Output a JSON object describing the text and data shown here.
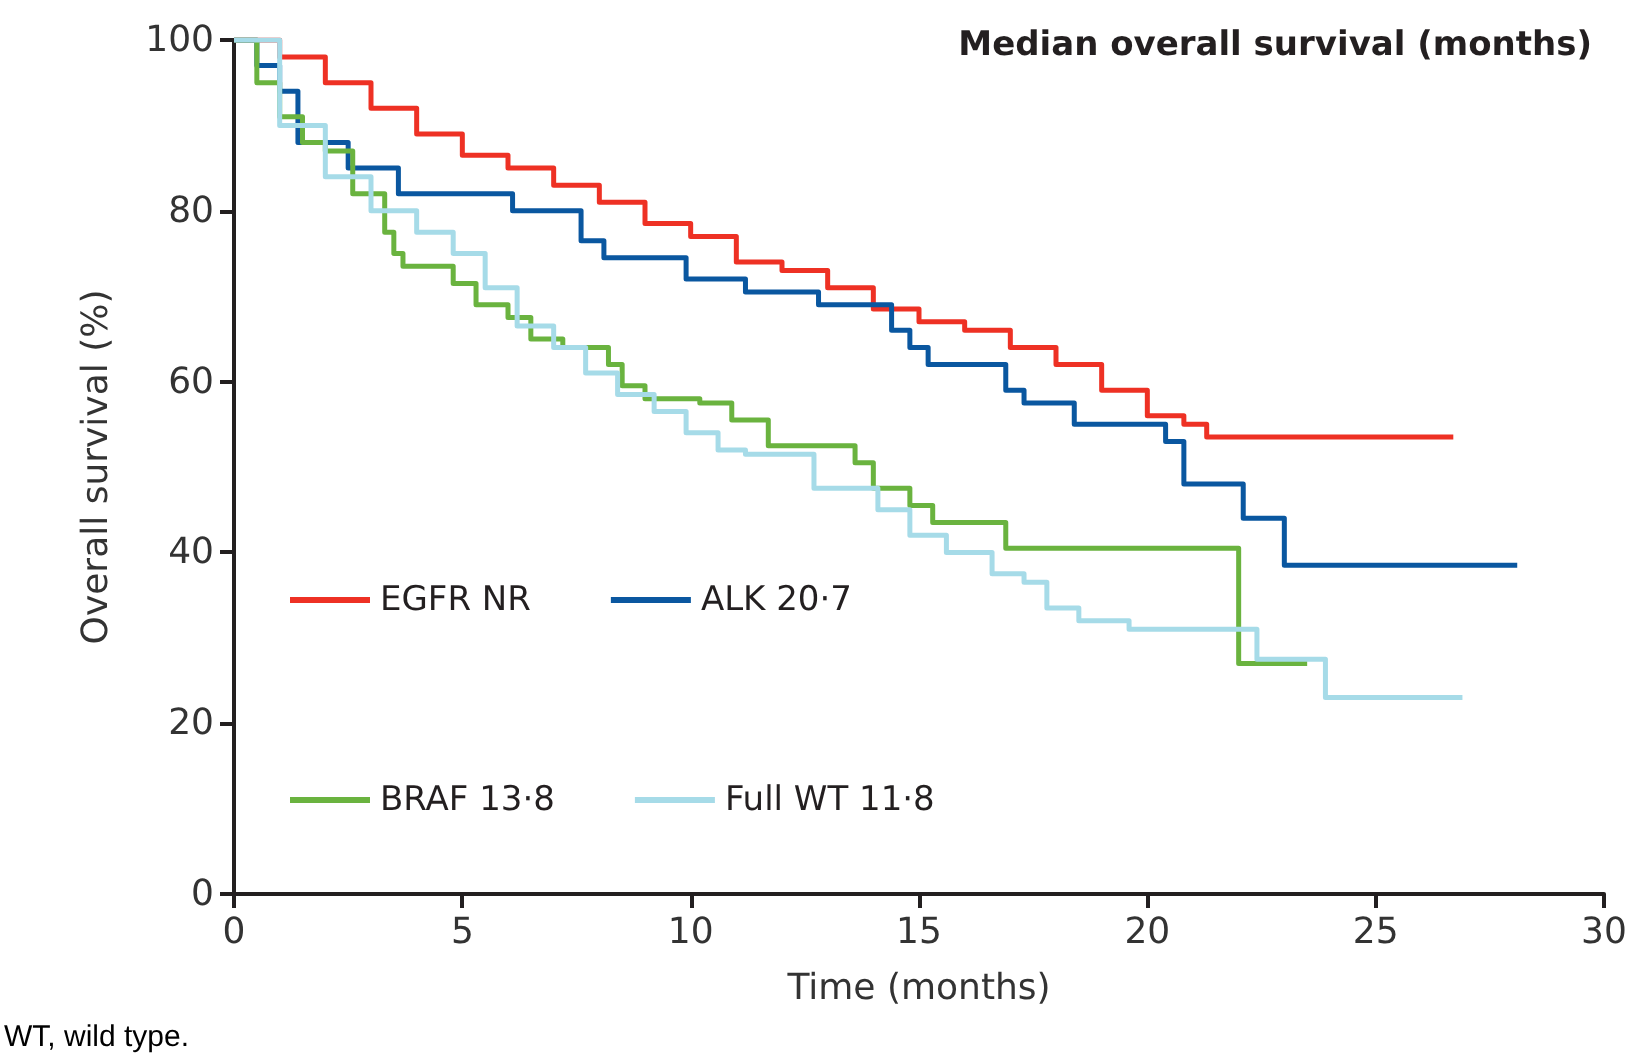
{
  "chart_data": {
    "type": "step",
    "xlabel": "Time (months)",
    "ylabel": "Overall survival (%)",
    "legend_title": "Median overall survival (months)",
    "xlim": [
      0,
      30
    ],
    "xticks": [
      0,
      5,
      10,
      15,
      20,
      25,
      30
    ],
    "ylim": [
      0,
      100
    ],
    "yticks": [
      0,
      20,
      40,
      60,
      80,
      100
    ],
    "grid": false,
    "legend": "bottom left",
    "marker": "none",
    "line_style": "solid",
    "annotations": [
      "WT, wild type."
    ],
    "series": [
      {
        "name": "EGFR NR",
        "color": "#ee3124",
        "x": [
          0,
          1,
          2,
          3,
          4,
          5,
          6,
          7,
          8,
          9,
          10,
          11,
          12,
          13,
          14,
          15,
          16,
          17,
          18,
          19,
          20,
          20.8,
          21.3,
          26.7
        ],
        "values": [
          100,
          98,
          95,
          92,
          89,
          86.5,
          85,
          83,
          81,
          78.5,
          77,
          74,
          73,
          71,
          68.5,
          67,
          66,
          64,
          62,
          59,
          56,
          55,
          53.5,
          53.5
        ]
      },
      {
        "name": "ALK 20·7",
        "color": "#0a57a0",
        "x": [
          0,
          0.5,
          1,
          1.4,
          2.5,
          3.6,
          6.1,
          7.6,
          8.1,
          9.9,
          11.2,
          12.8,
          14.4,
          14.8,
          15.2,
          16.9,
          17.3,
          18.4,
          20.4,
          20.8,
          22.1,
          23,
          28.1
        ],
        "values": [
          100,
          97,
          94,
          88,
          85,
          82,
          80,
          76.5,
          74.5,
          72,
          70.5,
          69,
          66,
          64,
          62,
          59,
          57.5,
          55,
          53,
          48,
          44,
          38.5,
          38.5
        ]
      },
      {
        "name": "BRAF 13·8",
        "color": "#6ab33f",
        "x": [
          0,
          0.5,
          1,
          1.5,
          2,
          2.6,
          3.3,
          3.5,
          3.7,
          4.8,
          5.3,
          6,
          6.5,
          7.2,
          8.2,
          8.5,
          9,
          10.2,
          10.9,
          11.7,
          13.6,
          14,
          14.8,
          15.3,
          16.9,
          22,
          23.5
        ],
        "values": [
          100,
          95,
          91,
          88,
          87,
          82,
          77.5,
          75,
          73.5,
          71.5,
          69,
          67.5,
          65,
          64,
          62,
          59.5,
          58,
          57.5,
          55.5,
          52.5,
          50.5,
          47.5,
          45.5,
          43.5,
          40.5,
          27,
          27
        ]
      },
      {
        "name": "Full WT 11·8",
        "color": "#a6dbe8",
        "x": [
          0,
          1,
          2,
          3,
          4,
          4.8,
          5.5,
          6.2,
          7,
          7.7,
          8.4,
          9.2,
          9.9,
          10.6,
          11.2,
          12.7,
          14.1,
          14.8,
          15.6,
          16.6,
          17.3,
          17.8,
          18.5,
          19.6,
          22.4,
          23.9,
          26.9
        ],
        "values": [
          100,
          90,
          84,
          80,
          77.5,
          75,
          71,
          66.5,
          64,
          61,
          58.5,
          56.5,
          54,
          52,
          51.5,
          47.5,
          45,
          42,
          40,
          37.5,
          36.5,
          33.5,
          32,
          31,
          27.5,
          23,
          23
        ]
      }
    ]
  }
}
